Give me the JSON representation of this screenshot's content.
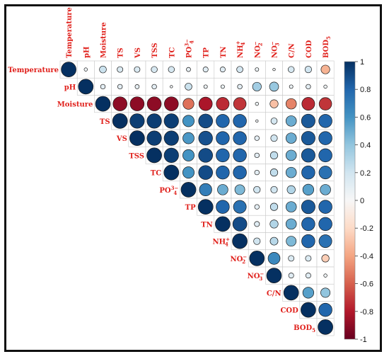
{
  "chart_data": {
    "type": "heatmap",
    "subtype": "correlation-matrix-upper-triangle-circles",
    "variables": [
      "Temperature",
      "pH",
      "Moisture",
      "TS",
      "VS",
      "TSS",
      "TC",
      "PO4",
      "TP",
      "TN",
      "NH4",
      "NO2",
      "NO3",
      "C/N",
      "COD",
      "BOD5"
    ],
    "labels": [
      {
        "base": "Temperature",
        "sup": "",
        "sub": ""
      },
      {
        "base": "pH",
        "sup": "",
        "sub": ""
      },
      {
        "base": "Moisture",
        "sup": "",
        "sub": ""
      },
      {
        "base": "TS",
        "sup": "",
        "sub": ""
      },
      {
        "base": "VS",
        "sup": "",
        "sub": ""
      },
      {
        "base": "TSS",
        "sup": "",
        "sub": ""
      },
      {
        "base": "TC",
        "sup": "",
        "sub": ""
      },
      {
        "base": "PO",
        "sup": "3−",
        "sub": "4"
      },
      {
        "base": "TP",
        "sup": "",
        "sub": ""
      },
      {
        "base": "TN",
        "sup": "",
        "sub": ""
      },
      {
        "base": "NH",
        "sup": "+",
        "sub": "4"
      },
      {
        "base": "NO",
        "sup": "−",
        "sub": "2"
      },
      {
        "base": "NO",
        "sup": "−",
        "sub": "3"
      },
      {
        "base": "C/N",
        "sup": "",
        "sub": ""
      },
      {
        "base": "COD",
        "sup": "",
        "sub": ""
      },
      {
        "base": "BOD",
        "sup": "",
        "sub": "5"
      }
    ],
    "matrix": [
      [
        1,
        0.05,
        0.22,
        0.15,
        0.15,
        0.17,
        0.17,
        0.08,
        0.12,
        0.12,
        0.18,
        0.06,
        0.03,
        0.17,
        0.2,
        -0.35
      ],
      [
        null,
        1,
        0.1,
        0.1,
        0.08,
        0.1,
        0.03,
        0.22,
        0.06,
        0.06,
        0.1,
        0.35,
        0.38,
        0.06,
        0.1,
        0.05
      ],
      [
        null,
        null,
        1,
        -0.9,
        -0.9,
        -0.9,
        -0.9,
        -0.55,
        -0.82,
        -0.75,
        -0.72,
        0.05,
        -0.3,
        -0.5,
        -0.75,
        -0.72
      ],
      [
        null,
        null,
        null,
        1,
        0.95,
        0.95,
        0.95,
        0.6,
        0.9,
        0.8,
        0.8,
        0.03,
        0.18,
        0.5,
        0.85,
        0.8
      ],
      [
        null,
        null,
        null,
        null,
        1,
        0.95,
        0.95,
        0.58,
        0.88,
        0.8,
        0.8,
        0.1,
        0.2,
        0.5,
        0.85,
        0.8
      ],
      [
        null,
        null,
        null,
        null,
        null,
        1,
        0.95,
        0.6,
        0.9,
        0.8,
        0.8,
        0.1,
        0.25,
        0.5,
        0.85,
        0.8
      ],
      [
        null,
        null,
        null,
        null,
        null,
        null,
        1,
        0.6,
        0.9,
        0.8,
        0.8,
        0.1,
        0.25,
        0.5,
        0.8,
        0.75
      ],
      [
        null,
        null,
        null,
        null,
        null,
        null,
        null,
        1,
        0.7,
        0.5,
        0.45,
        0.2,
        0.2,
        0.3,
        0.55,
        0.5
      ],
      [
        null,
        null,
        null,
        null,
        null,
        null,
        null,
        null,
        1,
        0.8,
        0.75,
        0.1,
        0.25,
        0.5,
        0.85,
        0.8
      ],
      [
        null,
        null,
        null,
        null,
        null,
        null,
        null,
        null,
        null,
        1,
        0.9,
        0.12,
        0.3,
        0.5,
        0.8,
        0.8
      ],
      [
        null,
        null,
        null,
        null,
        null,
        null,
        null,
        null,
        null,
        null,
        1,
        0.2,
        0.28,
        0.45,
        0.8,
        0.75
      ],
      [
        null,
        null,
        null,
        null,
        null,
        null,
        null,
        null,
        null,
        null,
        null,
        1,
        0.65,
        0.15,
        0.15,
        -0.25
      ],
      [
        null,
        null,
        null,
        null,
        null,
        null,
        null,
        null,
        null,
        null,
        null,
        null,
        1,
        0.12,
        0.12,
        0.05
      ],
      [
        null,
        null,
        null,
        null,
        null,
        null,
        null,
        null,
        null,
        null,
        null,
        null,
        null,
        1,
        0.55,
        0.4
      ],
      [
        null,
        null,
        null,
        null,
        null,
        null,
        null,
        null,
        null,
        null,
        null,
        null,
        null,
        null,
        1,
        0.8
      ],
      [
        null,
        null,
        null,
        null,
        null,
        null,
        null,
        null,
        null,
        null,
        null,
        null,
        null,
        null,
        null,
        1
      ]
    ],
    "value_range": [
      -1,
      1
    ],
    "colorbar": {
      "ticks": [
        "1",
        "0.8",
        "0.6",
        "0.4",
        "0.2",
        "0",
        "-0.2",
        "-0.4",
        "-0.6",
        "-0.8",
        "-1"
      ],
      "colors": {
        "negative": "#67001f",
        "neutral": "#f7f7f7",
        "positive": "#053061"
      }
    },
    "title": "",
    "grid": true
  }
}
